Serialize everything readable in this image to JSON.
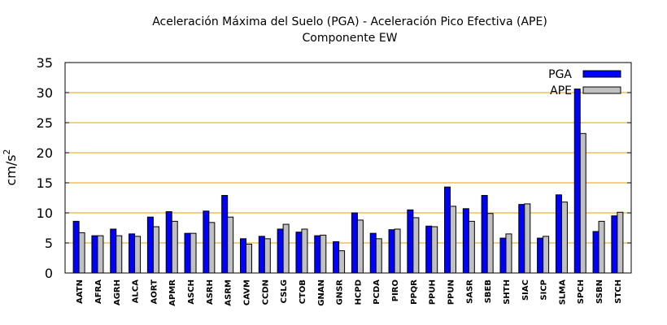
{
  "chart_data": {
    "type": "bar",
    "title": "Aceleración Máxima del Suelo (PGA) -  Aceleración Pico Efectiva (APE)",
    "subtitle": "Componente EW",
    "xlabel": "",
    "ylabel": "cm/s",
    "ylabel_superscript": "2",
    "ylim": [
      0,
      35
    ],
    "yticks": [
      0,
      5,
      10,
      15,
      20,
      25,
      30,
      35
    ],
    "grid": "horizontal",
    "legend_position": "top-right",
    "categories": [
      "AATN",
      "AFRA",
      "AGRH",
      "ALCA",
      "AORT",
      "APMR",
      "ASCH",
      "ASRH",
      "ASRM",
      "CAVM",
      "CCDN",
      "CSLG",
      "CTOB",
      "GNAN",
      "GNSR",
      "HCPD",
      "PCDA",
      "PIRO",
      "PPQR",
      "PPUH",
      "PPUN",
      "SASR",
      "SBEB",
      "SHTH",
      "SIAC",
      "SICP",
      "SLMA",
      "SPCH",
      "SSBN",
      "STCH"
    ],
    "series": [
      {
        "name": "PGA",
        "color": "#0000ff",
        "values": [
          8.6,
          6.2,
          7.3,
          6.5,
          9.3,
          10.2,
          6.6,
          10.3,
          12.9,
          5.7,
          6.1,
          7.3,
          6.8,
          6.2,
          5.2,
          10.0,
          6.6,
          7.2,
          10.5,
          7.8,
          14.3,
          10.7,
          12.9,
          5.8,
          11.4,
          5.8,
          13.0,
          30.6,
          6.9,
          9.5
        ]
      },
      {
        "name": "APE",
        "color": "#c0c0c0",
        "values": [
          6.7,
          6.2,
          6.2,
          6.1,
          7.7,
          8.6,
          6.6,
          8.4,
          9.3,
          4.8,
          5.7,
          8.1,
          7.3,
          6.3,
          3.7,
          8.8,
          5.7,
          7.3,
          9.2,
          7.7,
          11.1,
          8.6,
          9.9,
          6.5,
          11.5,
          6.1,
          11.8,
          23.2,
          8.6,
          10.1
        ]
      }
    ]
  },
  "colors": {
    "grid": "#e6a200",
    "axis": "#000000",
    "bar_stroke": "#000000"
  }
}
